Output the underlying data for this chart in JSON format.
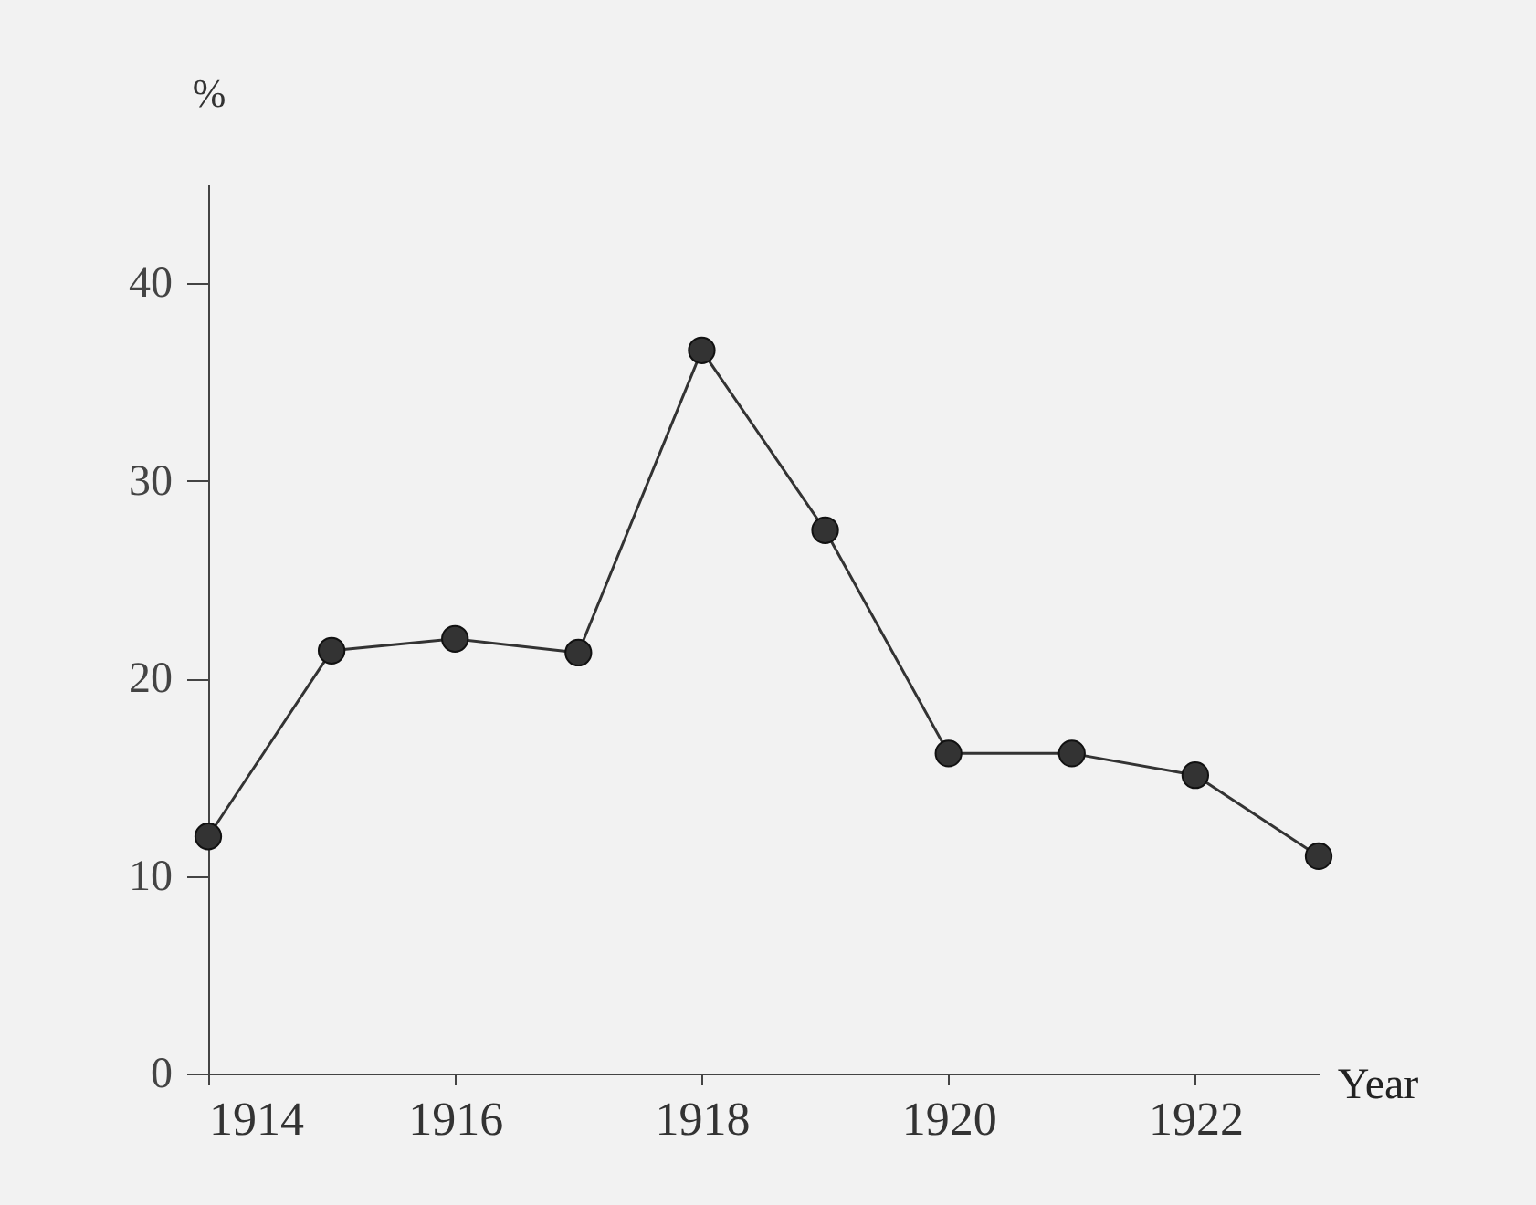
{
  "chart_data": {
    "type": "line",
    "xlabel": "Year",
    "ylabel": "%",
    "x": [
      1914,
      1915,
      1916,
      1917,
      1918,
      1919,
      1920,
      1921,
      1922,
      1923
    ],
    "series": [
      {
        "color": "#333333",
        "values": [
          12,
          21.4,
          22,
          21.3,
          36.6,
          27.5,
          16.2,
          16.2,
          15.1,
          11
        ]
      }
    ],
    "xlim": [
      1914,
      1923
    ],
    "xticks": [
      1914,
      1916,
      1918,
      1920,
      1922
    ],
    "ylim": [
      0,
      45
    ],
    "yticks": [
      0,
      10,
      20,
      30,
      40
    ],
    "grid": false,
    "marker": "circle",
    "line_style": "solid",
    "legend": false
  }
}
